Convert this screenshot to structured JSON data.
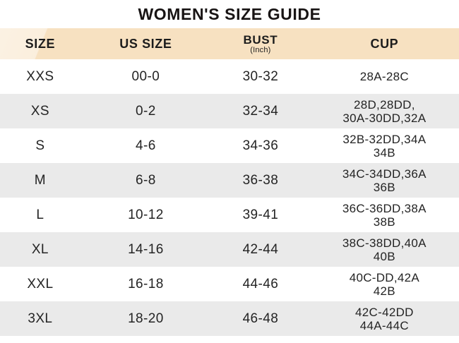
{
  "title": "WOMEN'S SIZE GUIDE",
  "colors": {
    "header_bg": "#f7e1c1",
    "header_bg_highlight": "#fdf1e1",
    "row_alt_bg": "#eaeaea",
    "text": "#1f1f1f",
    "title_text": "#181414"
  },
  "table": {
    "headers": {
      "size": "SIZE",
      "us_size": "US SIZE",
      "bust": "BUST",
      "bust_unit": "(Inch)",
      "cup": "CUP"
    },
    "rows": [
      {
        "size": "XXS",
        "us_size": "00-0",
        "bust": "30-32",
        "cup": [
          "28A-28C"
        ]
      },
      {
        "size": "XS",
        "us_size": "0-2",
        "bust": "32-34",
        "cup": [
          "28D,28DD,",
          "30A-30DD,32A"
        ]
      },
      {
        "size": "S",
        "us_size": "4-6",
        "bust": "34-36",
        "cup": [
          "32B-32DD,34A",
          "34B"
        ]
      },
      {
        "size": "M",
        "us_size": "6-8",
        "bust": "36-38",
        "cup": [
          "34C-34DD,36A",
          "36B"
        ]
      },
      {
        "size": "L",
        "us_size": "10-12",
        "bust": "39-41",
        "cup": [
          "36C-36DD,38A",
          "38B"
        ]
      },
      {
        "size": "XL",
        "us_size": "14-16",
        "bust": "42-44",
        "cup": [
          "38C-38DD,40A",
          "40B"
        ]
      },
      {
        "size": "XXL",
        "us_size": "16-18",
        "bust": "44-46",
        "cup": [
          "40C-DD,42A",
          "42B"
        ]
      },
      {
        "size": "3XL",
        "us_size": "18-20",
        "bust": "46-48",
        "cup": [
          "42C-42DD",
          "44A-44C"
        ]
      }
    ]
  }
}
